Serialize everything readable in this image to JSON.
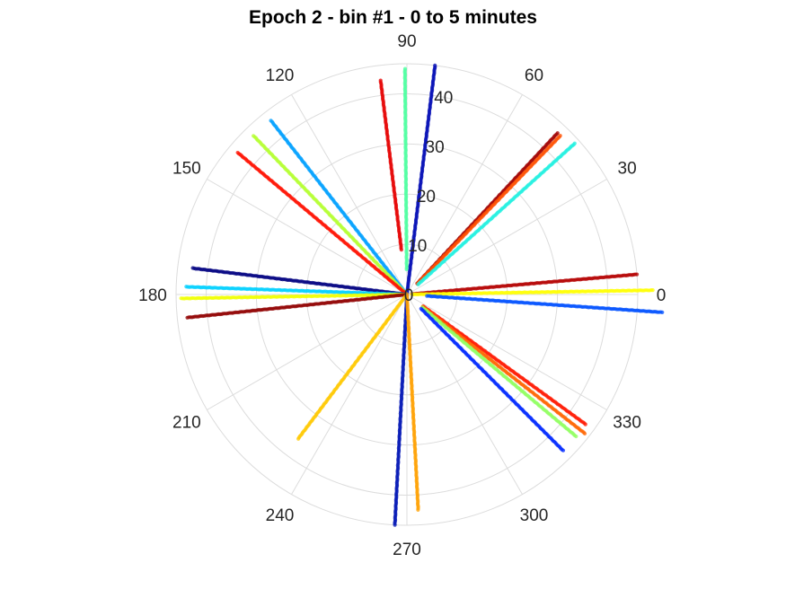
{
  "chart_data": {
    "type": "scatter",
    "coordinate_system": "polar",
    "title": "Epoch 2 - bin #1 - 0 to 5 minutes",
    "angle_unit": "degrees",
    "angle_ticks": [
      0,
      30,
      60,
      90,
      120,
      150,
      180,
      210,
      240,
      270,
      300,
      330
    ],
    "angle_tick_labels": [
      "0",
      "30",
      "60",
      "90",
      "120",
      "150",
      "180",
      "210",
      "240",
      "270",
      "300",
      "330"
    ],
    "r_ticks": [
      0,
      10,
      20,
      30,
      40
    ],
    "r_tick_labels": [
      "0",
      "10",
      "20",
      "30",
      "40"
    ],
    "rlim": [
      0,
      46
    ],
    "r_label_angle_deg": 80,
    "grid": true,
    "series": [
      {
        "angle_deg": 97,
        "r_start": 9,
        "r_end": 43,
        "color": "#e60000"
      },
      {
        "angle_deg": 90.5,
        "r_start": 5,
        "r_end": 45,
        "color": "#4dffa0"
      },
      {
        "angle_deg": 83,
        "r_start": 0,
        "r_end": 46,
        "color": "#000ab4"
      },
      {
        "angle_deg": 47,
        "r_start": 3,
        "r_end": 44,
        "color": "#a00000"
      },
      {
        "angle_deg": 46,
        "r_start": 3,
        "r_end": 44,
        "color": "#ff5000"
      },
      {
        "angle_deg": 42,
        "r_start": 3,
        "r_end": 45,
        "color": "#20f0e0"
      },
      {
        "angle_deg": 128,
        "r_start": 0,
        "r_end": 44,
        "color": "#00a0ff"
      },
      {
        "angle_deg": 134,
        "r_start": 0,
        "r_end": 44,
        "color": "#b4ff30"
      },
      {
        "angle_deg": 140,
        "r_start": 0,
        "r_end": 44,
        "color": "#ff1000"
      },
      {
        "angle_deg": 173,
        "r_start": 0,
        "r_end": 43,
        "color": "#000080"
      },
      {
        "angle_deg": 178,
        "r_start": 0,
        "r_end": 44,
        "color": "#00d0ff"
      },
      {
        "angle_deg": 181,
        "r_start": 0,
        "r_end": 45,
        "color": "#f0ff00"
      },
      {
        "angle_deg": 186,
        "r_start": 0,
        "r_end": 44,
        "color": "#900000"
      },
      {
        "angle_deg": 233,
        "r_start": 0,
        "r_end": 36,
        "color": "#ffc800"
      },
      {
        "angle_deg": 267,
        "r_start": 0,
        "r_end": 46,
        "color": "#0014b4"
      },
      {
        "angle_deg": 273,
        "r_start": 0,
        "r_end": 43,
        "color": "#ffa000"
      },
      {
        "angle_deg": 5,
        "r_start": 1,
        "r_end": 46,
        "color": "#b40000"
      },
      {
        "angle_deg": 1,
        "r_start": 1,
        "r_end": 49,
        "color": "#ffff00"
      },
      {
        "angle_deg": -4,
        "r_start": 4,
        "r_end": 51,
        "color": "#0050ff"
      },
      {
        "angle_deg": -36,
        "r_start": 4,
        "r_end": 44,
        "color": "#ff1800"
      },
      {
        "angle_deg": -38,
        "r_start": 4,
        "r_end": 45,
        "color": "#ff6400"
      },
      {
        "angle_deg": -40,
        "r_start": 4,
        "r_end": 44,
        "color": "#90ff60"
      },
      {
        "angle_deg": -45,
        "r_start": 4,
        "r_end": 44,
        "color": "#0028ff"
      }
    ]
  }
}
